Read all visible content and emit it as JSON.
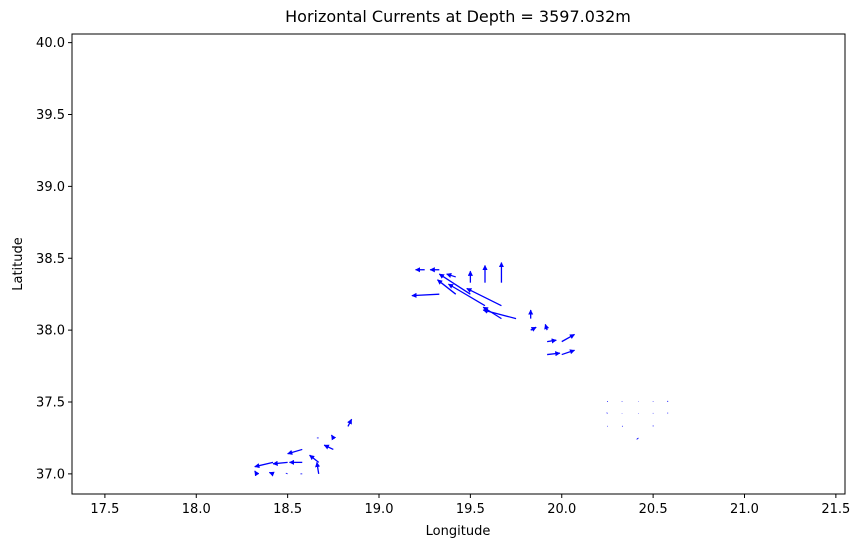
{
  "chart_data": {
    "type": "quiver",
    "title": "Horizontal Currents at Depth = 3597.032m",
    "xlabel": "Longitude",
    "ylabel": "Latitude",
    "xlim": [
      17.32,
      21.55
    ],
    "ylim": [
      36.86,
      40.06
    ],
    "xticks": [
      "17.5",
      "18.0",
      "18.5",
      "19.0",
      "19.5",
      "20.0",
      "20.5",
      "21.0",
      "21.5"
    ],
    "yticks": [
      "37.0",
      "37.5",
      "38.0",
      "38.5",
      "39.0",
      "39.5",
      "40.0"
    ],
    "grid": false,
    "arrow_color": "#0000ff",
    "arrows": [
      {
        "lon": 19.25,
        "lat": 38.42,
        "u": -0.05,
        "v": 0.0
      },
      {
        "lon": 19.33,
        "lat": 38.42,
        "u": -0.05,
        "v": 0.0
      },
      {
        "lon": 19.42,
        "lat": 38.37,
        "u": -0.05,
        "v": 0.02
      },
      {
        "lon": 19.5,
        "lat": 38.33,
        "u": 0.0,
        "v": 0.08
      },
      {
        "lon": 19.58,
        "lat": 38.33,
        "u": 0.0,
        "v": 0.12
      },
      {
        "lon": 19.67,
        "lat": 38.33,
        "u": 0.0,
        "v": 0.14
      },
      {
        "lon": 19.42,
        "lat": 38.25,
        "u": -0.1,
        "v": 0.1
      },
      {
        "lon": 19.5,
        "lat": 38.25,
        "u": -0.17,
        "v": 0.14
      },
      {
        "lon": 19.67,
        "lat": 38.17,
        "u": -0.19,
        "v": 0.12
      },
      {
        "lon": 19.58,
        "lat": 38.17,
        "u": -0.2,
        "v": 0.15
      },
      {
        "lon": 19.33,
        "lat": 38.25,
        "u": -0.15,
        "v": -0.01
      },
      {
        "lon": 19.75,
        "lat": 38.08,
        "u": -0.18,
        "v": 0.06
      },
      {
        "lon": 19.67,
        "lat": 38.08,
        "u": -0.1,
        "v": 0.08
      },
      {
        "lon": 19.83,
        "lat": 38.08,
        "u": 0.0,
        "v": 0.06
      },
      {
        "lon": 19.92,
        "lat": 38.0,
        "u": -0.01,
        "v": 0.04
      },
      {
        "lon": 19.83,
        "lat": 38.0,
        "u": 0.03,
        "v": 0.02
      },
      {
        "lon": 19.92,
        "lat": 37.92,
        "u": 0.05,
        "v": 0.01
      },
      {
        "lon": 20.0,
        "lat": 37.92,
        "u": 0.07,
        "v": 0.05
      },
      {
        "lon": 19.92,
        "lat": 37.83,
        "u": 0.07,
        "v": 0.01
      },
      {
        "lon": 20.0,
        "lat": 37.83,
        "u": 0.07,
        "v": 0.03
      },
      {
        "lon": 20.25,
        "lat": 37.5,
        "u": 0.0,
        "v": 0.006
      },
      {
        "lon": 20.33,
        "lat": 37.5,
        "u": 0.0,
        "v": 0.004
      },
      {
        "lon": 20.42,
        "lat": 37.5,
        "u": 0.0,
        "v": 0.003
      },
      {
        "lon": 20.5,
        "lat": 37.5,
        "u": 0.0,
        "v": 0.004
      },
      {
        "lon": 20.58,
        "lat": 37.5,
        "u": 0.0,
        "v": 0.008
      },
      {
        "lon": 20.25,
        "lat": 37.42,
        "u": -0.004,
        "v": 0.006
      },
      {
        "lon": 20.33,
        "lat": 37.42,
        "u": 0.0,
        "v": 0.003
      },
      {
        "lon": 20.42,
        "lat": 37.42,
        "u": 0.0,
        "v": 0.003
      },
      {
        "lon": 20.5,
        "lat": 37.42,
        "u": 0.0,
        "v": 0.004
      },
      {
        "lon": 20.58,
        "lat": 37.42,
        "u": 0.0,
        "v": 0.006
      },
      {
        "lon": 20.25,
        "lat": 37.33,
        "u": 0.0,
        "v": 0.004
      },
      {
        "lon": 20.33,
        "lat": 37.33,
        "u": 0.004,
        "v": 0.003
      },
      {
        "lon": 20.42,
        "lat": 37.33,
        "u": 0.0,
        "v": 0.0
      },
      {
        "lon": 20.5,
        "lat": 37.33,
        "u": 0.0,
        "v": 0.007
      },
      {
        "lon": 20.42,
        "lat": 37.25,
        "u": -0.01,
        "v": -0.01
      },
      {
        "lon": 18.83,
        "lat": 37.33,
        "u": 0.02,
        "v": 0.05
      },
      {
        "lon": 18.67,
        "lat": 37.25,
        "u": -0.01,
        "v": 0.0
      },
      {
        "lon": 18.75,
        "lat": 37.25,
        "u": -0.01,
        "v": 0.02
      },
      {
        "lon": 18.75,
        "lat": 37.17,
        "u": -0.05,
        "v": 0.03
      },
      {
        "lon": 18.58,
        "lat": 37.17,
        "u": -0.08,
        "v": -0.03
      },
      {
        "lon": 18.67,
        "lat": 37.08,
        "u": -0.05,
        "v": 0.05
      },
      {
        "lon": 18.67,
        "lat": 37.0,
        "u": -0.01,
        "v": 0.08
      },
      {
        "lon": 18.58,
        "lat": 37.08,
        "u": -0.07,
        "v": 0.0
      },
      {
        "lon": 18.5,
        "lat": 37.08,
        "u": -0.08,
        "v": -0.01
      },
      {
        "lon": 18.42,
        "lat": 37.08,
        "u": -0.1,
        "v": -0.03
      },
      {
        "lon": 18.33,
        "lat": 37.0,
        "u": -0.01,
        "v": 0.02
      },
      {
        "lon": 18.42,
        "lat": 37.0,
        "u": -0.02,
        "v": 0.01
      },
      {
        "lon": 18.5,
        "lat": 37.0,
        "u": -0.01,
        "v": 0.005
      },
      {
        "lon": 18.58,
        "lat": 37.0,
        "u": -0.01,
        "v": 0.0
      }
    ]
  }
}
